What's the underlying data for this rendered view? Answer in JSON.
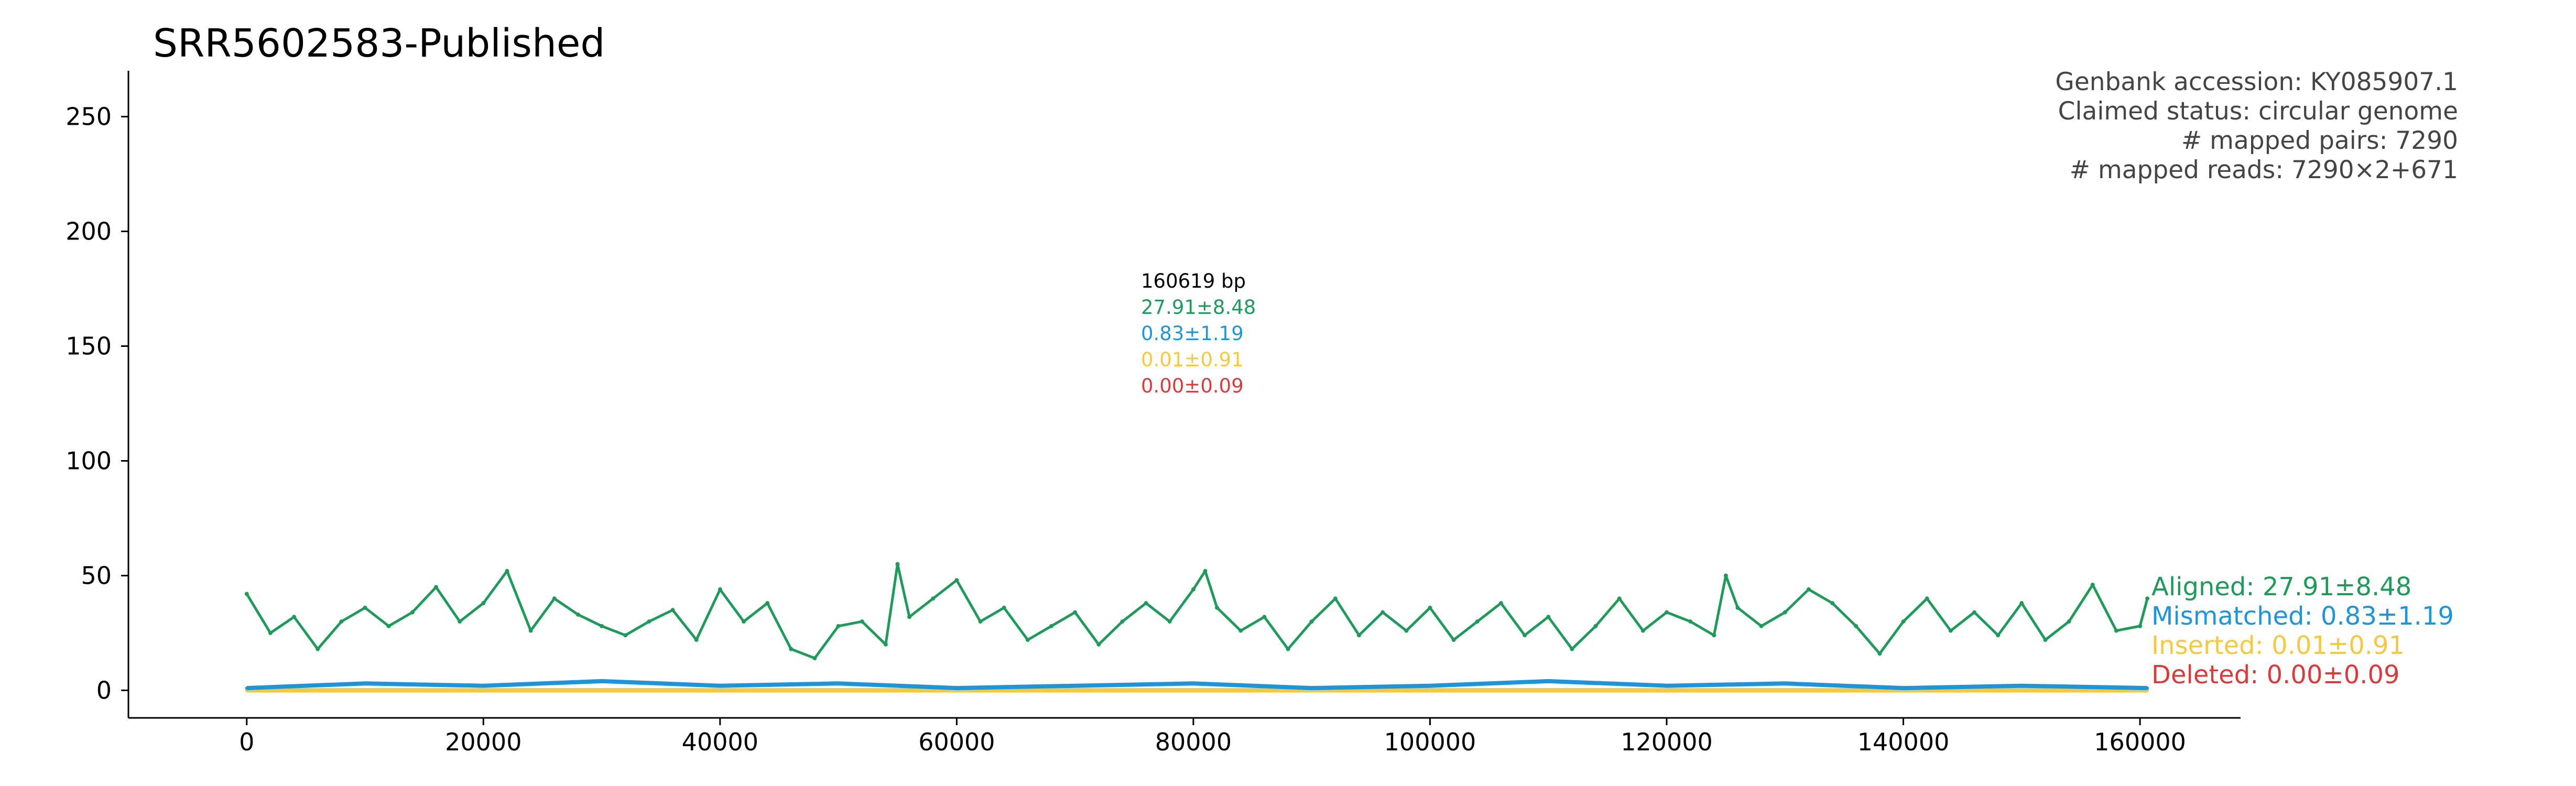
{
  "chart_data": {
    "type": "line",
    "title": "SRR5602583-Published",
    "xlabel": "",
    "ylabel": "",
    "xlim": [
      -10000,
      168500
    ],
    "ylim": [
      -12,
      270
    ],
    "xticks": [
      0,
      20000,
      40000,
      60000,
      80000,
      100000,
      120000,
      140000,
      160000
    ],
    "yticks": [
      0,
      50,
      100,
      150,
      200,
      250
    ],
    "info_lines": [
      "Genbank accession: KY085907.1",
      "Claimed status: circular genome",
      "# mapped pairs: 7290",
      "# mapped reads: 7290×2+671"
    ],
    "summary": {
      "length": "160619 bp",
      "aligned": "27.91±8.48",
      "mismatched": "0.83±1.19",
      "inserted": "0.01±0.91",
      "deleted": "0.00±0.09"
    },
    "series": [
      {
        "name": "Aligned: 27.91±8.48",
        "color": "#1f9a5a",
        "x": [
          0,
          2000,
          4000,
          6000,
          8000,
          10000,
          12000,
          14000,
          16000,
          18000,
          20000,
          22000,
          24000,
          26000,
          28000,
          30000,
          32000,
          34000,
          36000,
          38000,
          40000,
          42000,
          44000,
          46000,
          48000,
          50000,
          52000,
          54000,
          55000,
          56000,
          58000,
          60000,
          62000,
          64000,
          66000,
          68000,
          70000,
          72000,
          74000,
          76000,
          78000,
          80000,
          81000,
          82000,
          84000,
          86000,
          88000,
          90000,
          92000,
          94000,
          96000,
          98000,
          100000,
          102000,
          104000,
          106000,
          108000,
          110000,
          112000,
          114000,
          116000,
          118000,
          120000,
          122000,
          124000,
          125000,
          126000,
          128000,
          130000,
          132000,
          134000,
          136000,
          138000,
          140000,
          142000,
          144000,
          146000,
          148000,
          150000,
          152000,
          154000,
          156000,
          158000,
          160000,
          160619
        ],
        "values": [
          42,
          25,
          32,
          18,
          30,
          36,
          28,
          34,
          45,
          30,
          38,
          52,
          26,
          40,
          33,
          28,
          24,
          30,
          35,
          22,
          44,
          30,
          38,
          18,
          14,
          28,
          30,
          20,
          55,
          32,
          40,
          48,
          30,
          36,
          22,
          28,
          34,
          20,
          30,
          38,
          30,
          44,
          52,
          36,
          26,
          32,
          18,
          30,
          40,
          24,
          34,
          26,
          36,
          22,
          30,
          38,
          24,
          32,
          18,
          28,
          40,
          26,
          34,
          30,
          24,
          50,
          36,
          28,
          34,
          44,
          38,
          28,
          16,
          30,
          40,
          26,
          34,
          24,
          38,
          22,
          30,
          46,
          26,
          28,
          40
        ]
      },
      {
        "name": "Mismatched: 0.83±1.19",
        "color": "#1e95d9",
        "x": [
          0,
          10000,
          20000,
          30000,
          40000,
          50000,
          60000,
          70000,
          80000,
          90000,
          100000,
          110000,
          120000,
          130000,
          140000,
          150000,
          160619
        ],
        "values": [
          1,
          3,
          2,
          4,
          2,
          3,
          1,
          2,
          3,
          1,
          2,
          4,
          2,
          3,
          1,
          2,
          1
        ]
      },
      {
        "name": "Inserted: 0.01±0.91",
        "color": "#f5c842",
        "x": [
          0,
          40000,
          80000,
          120000,
          160619
        ],
        "values": [
          0,
          0,
          0,
          0,
          0
        ]
      },
      {
        "name": "Deleted: 0.00±0.09",
        "color": "#d93b3b",
        "x": [
          0,
          40000,
          80000,
          120000,
          160619
        ],
        "values": [
          0,
          0,
          0,
          0,
          0
        ]
      }
    ],
    "grid": false,
    "legend_position": "right"
  }
}
